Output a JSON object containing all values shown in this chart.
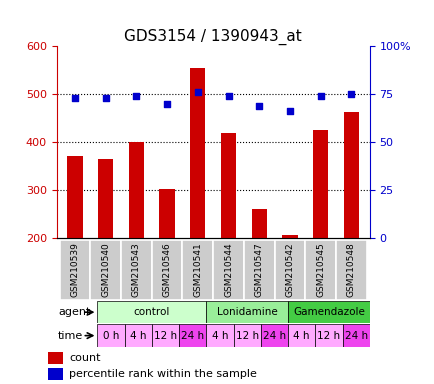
{
  "title": "GDS3154 / 1390943_at",
  "samples": [
    "GSM210539",
    "GSM210540",
    "GSM210543",
    "GSM210546",
    "GSM210541",
    "GSM210544",
    "GSM210547",
    "GSM210542",
    "GSM210545",
    "GSM210548"
  ],
  "counts": [
    370,
    365,
    400,
    302,
    555,
    418,
    260,
    207,
    425,
    462
  ],
  "percentiles": [
    73,
    73,
    74,
    70,
    76,
    74,
    69,
    66,
    74,
    75
  ],
  "ylim_left": [
    200,
    600
  ],
  "ylim_right": [
    0,
    100
  ],
  "yticks_left": [
    200,
    300,
    400,
    500,
    600
  ],
  "yticks_right": [
    0,
    25,
    50,
    75,
    100
  ],
  "ytick_right_labels": [
    "0",
    "25",
    "50",
    "75",
    "100%"
  ],
  "bar_color": "#cc0000",
  "dot_color": "#0000cc",
  "agents": [
    {
      "label": "control",
      "start": 0,
      "end": 4,
      "color": "#ccffcc"
    },
    {
      "label": "Lonidamine",
      "start": 4,
      "end": 7,
      "color": "#99ee99"
    },
    {
      "label": "Gamendazole",
      "start": 7,
      "end": 10,
      "color": "#44cc44"
    }
  ],
  "times": [
    "0 h",
    "4 h",
    "12 h",
    "24 h",
    "4 h",
    "12 h",
    "24 h",
    "4 h",
    "12 h",
    "24 h"
  ],
  "time_colors": [
    "#ffaaff",
    "#ffaaff",
    "#ffaaff",
    "#ee44ee",
    "#ffaaff",
    "#ffaaff",
    "#ee44ee",
    "#ffaaff",
    "#ffaaff",
    "#ee44ee"
  ],
  "sample_bg_color": "#cccccc",
  "legend_count_color": "#cc0000",
  "legend_dot_color": "#0000cc",
  "grid_lines": [
    300,
    400,
    500
  ]
}
